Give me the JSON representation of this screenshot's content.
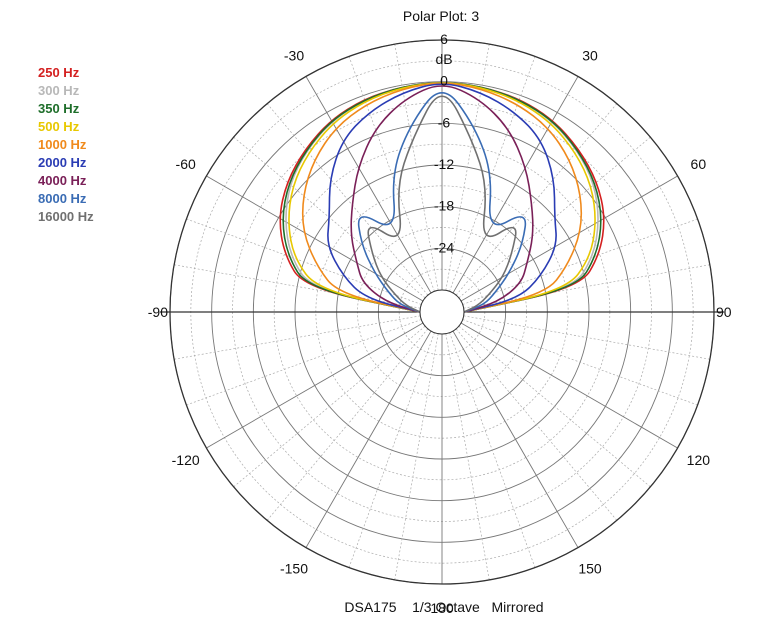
{
  "chart_data": {
    "type": "polar",
    "title": "Polar Plot: 3",
    "unit": "dB",
    "footer": "DSA175    1/3 Octave   Mirrored",
    "radial_ticks": [
      "6",
      "0",
      "-6",
      "-12",
      "-18",
      "-24"
    ],
    "radial_range": [
      -30,
      6
    ],
    "angle_ticks": [
      "-30",
      "30",
      "-60",
      "60",
      "-90",
      "90",
      "-120",
      "120",
      "-150",
      "150",
      "180"
    ],
    "mirrored": true,
    "grid": true,
    "legend_position": "top-left",
    "series": [
      {
        "name": "250 Hz",
        "color": "#d42020",
        "angles": [
          0,
          10,
          20,
          30,
          40,
          50,
          60,
          70,
          80,
          90
        ],
        "values_db": [
          0,
          -0.2,
          -0.5,
          -1.2,
          -2.5,
          -4,
          -6,
          -9,
          -13,
          -30
        ]
      },
      {
        "name": "300 Hz",
        "color": "#b8b8b8",
        "angles": [
          0,
          10,
          20,
          30,
          40,
          50,
          60,
          70,
          80,
          90
        ],
        "values_db": [
          0,
          -0.2,
          -0.6,
          -1.4,
          -2.8,
          -4.5,
          -7,
          -10,
          -14,
          -30
        ]
      },
      {
        "name": "350 Hz",
        "color": "#1e6e2a",
        "angles": [
          0,
          10,
          20,
          30,
          40,
          50,
          60,
          70,
          80,
          90
        ],
        "values_db": [
          0,
          -0.2,
          -0.6,
          -1.3,
          -2.7,
          -4.3,
          -6.5,
          -9.5,
          -13.5,
          -30
        ]
      },
      {
        "name": "500 Hz",
        "color": "#e8c800",
        "angles": [
          0,
          10,
          20,
          30,
          40,
          50,
          60,
          70,
          80,
          90
        ],
        "values_db": [
          0,
          -0.3,
          -0.8,
          -1.7,
          -3.2,
          -5,
          -7.5,
          -10.5,
          -15,
          -30
        ]
      },
      {
        "name": "1000 Hz",
        "color": "#f08a1c",
        "angles": [
          0,
          10,
          20,
          30,
          40,
          50,
          60,
          70,
          80,
          90
        ],
        "values_db": [
          0,
          -0.5,
          -1.3,
          -2.5,
          -4.5,
          -7,
          -10,
          -14,
          -18,
          -30
        ]
      },
      {
        "name": "2000 Hz",
        "color": "#2a3cb4",
        "angles": [
          0,
          10,
          20,
          30,
          40,
          50,
          60,
          70,
          80,
          90
        ],
        "values_db": [
          0,
          -1,
          -2.5,
          -4.5,
          -8,
          -12,
          -14,
          -18,
          -22,
          -30
        ]
      },
      {
        "name": "4000 Hz",
        "color": "#7a2058",
        "angles": [
          0,
          10,
          20,
          30,
          40,
          50,
          60,
          70,
          80,
          90
        ],
        "values_db": [
          0,
          -2,
          -5,
          -9,
          -13,
          -16,
          -19,
          -21,
          -25,
          -30
        ]
      },
      {
        "name": "8000 Hz",
        "color": "#3a6cb4",
        "angles": [
          0,
          10,
          20,
          30,
          40,
          50,
          60,
          70,
          80,
          90
        ],
        "values_db": [
          0,
          -6,
          -12,
          -20,
          -14,
          -18,
          -22,
          -25,
          -27,
          -30
        ]
      },
      {
        "name": "16000 Hz",
        "color": "#707070",
        "angles": [
          0,
          10,
          20,
          30,
          40,
          50,
          60,
          70,
          80,
          90
        ],
        "values_db": [
          0,
          -8,
          -14,
          -22,
          -16,
          -20,
          -23,
          -26,
          -28,
          -30
        ]
      }
    ]
  }
}
